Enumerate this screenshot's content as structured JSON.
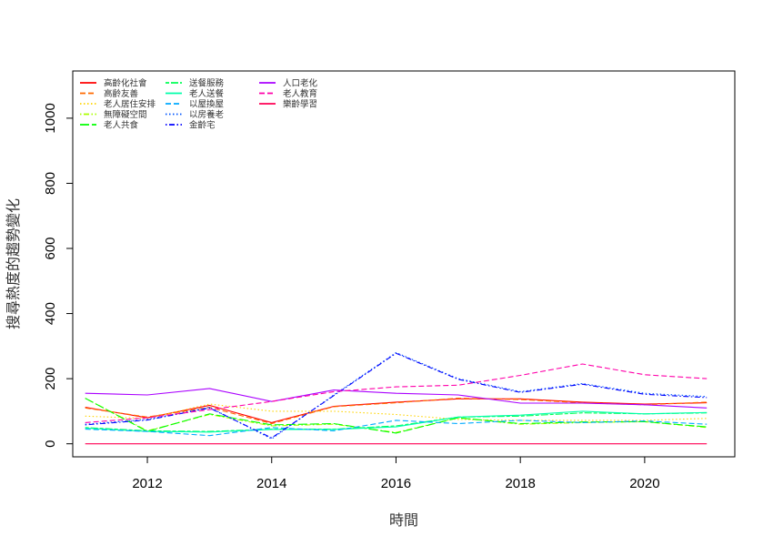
{
  "chart_data": {
    "type": "line",
    "title": "",
    "xlabel": "時間",
    "ylabel": "搜尋熱度的趨勢變化",
    "xlim": [
      2010.8,
      2021.45
    ],
    "ylim": [
      -40,
      1145
    ],
    "x_ticks": [
      "2012",
      "2014",
      "2016",
      "2018",
      "2020"
    ],
    "y_ticks": [
      "0",
      "200",
      "400",
      "600",
      "800",
      "1000"
    ],
    "grid": false,
    "legend_position": "top-left",
    "x": [
      2011,
      2012,
      2013,
      2014,
      2015,
      2016,
      2017,
      2018,
      2019,
      2020,
      2021
    ],
    "series": [
      {
        "name": "高齡化社會",
        "color": "#FF0000",
        "dash": "solid",
        "values": [
          112,
          80,
          118,
          65,
          115,
          128,
          138,
          138,
          128,
          122,
          126
        ]
      },
      {
        "name": "高齡友善",
        "color": "#FF6A00",
        "dash": "dashed",
        "values": [
          110,
          82,
          112,
          62,
          114,
          126,
          140,
          136,
          126,
          120,
          128
        ]
      },
      {
        "name": "老人居住安排",
        "color": "#FFD400",
        "dash": "dotted",
        "values": [
          85,
          78,
          122,
          100,
          100,
          90,
          75,
          72,
          72,
          72,
          78
        ]
      },
      {
        "name": "無障礙空間",
        "color": "#AAFF00",
        "dash": "dotdash",
        "values": [
          140,
          40,
          90,
          55,
          60,
          35,
          80,
          60,
          65,
          68,
          50
        ]
      },
      {
        "name": "老人共食",
        "color": "#00FF00",
        "dash": "longdash",
        "values": [
          140,
          38,
          92,
          58,
          62,
          33,
          80,
          62,
          67,
          68,
          52
        ]
      },
      {
        "name": "送餐服務",
        "color": "#00FF55",
        "dash": "twodash",
        "values": [
          50,
          40,
          38,
          45,
          45,
          55,
          82,
          85,
          95,
          92,
          95
        ]
      },
      {
        "name": "老人送餐",
        "color": "#00FFAA",
        "dash": "solid",
        "values": [
          48,
          38,
          36,
          44,
          44,
          52,
          82,
          88,
          100,
          92,
          96
        ]
      },
      {
        "name": "以屋換屋",
        "color": "#00AAFF",
        "dash": "dashed",
        "values": [
          45,
          38,
          25,
          50,
          40,
          72,
          62,
          72,
          65,
          70,
          60
        ]
      },
      {
        "name": "以房養老",
        "color": "#0055FF",
        "dash": "dotted",
        "values": [
          60,
          75,
          112,
          15,
          150,
          280,
          200,
          160,
          185,
          155,
          145
        ]
      },
      {
        "name": "金齡宅",
        "color": "#0000FF",
        "dash": "dotdash",
        "values": [
          58,
          73,
          110,
          18,
          148,
          278,
          198,
          158,
          183,
          152,
          142
        ]
      },
      {
        "name": "人口老化",
        "color": "#AA00FF",
        "dash": "solid",
        "values": [
          155,
          150,
          170,
          130,
          165,
          155,
          150,
          125,
          125,
          120,
          110
        ]
      },
      {
        "name": "老人教育",
        "color": "#FF00AA",
        "dash": "dashed",
        "values": [
          65,
          80,
          105,
          130,
          160,
          175,
          180,
          210,
          245,
          212,
          200
        ]
      },
      {
        "name": "樂齡學習",
        "color": "#FF0055",
        "dash": "solid",
        "values": [
          0,
          0,
          0,
          0,
          0,
          0,
          0,
          0,
          0,
          0,
          0
        ]
      }
    ]
  }
}
